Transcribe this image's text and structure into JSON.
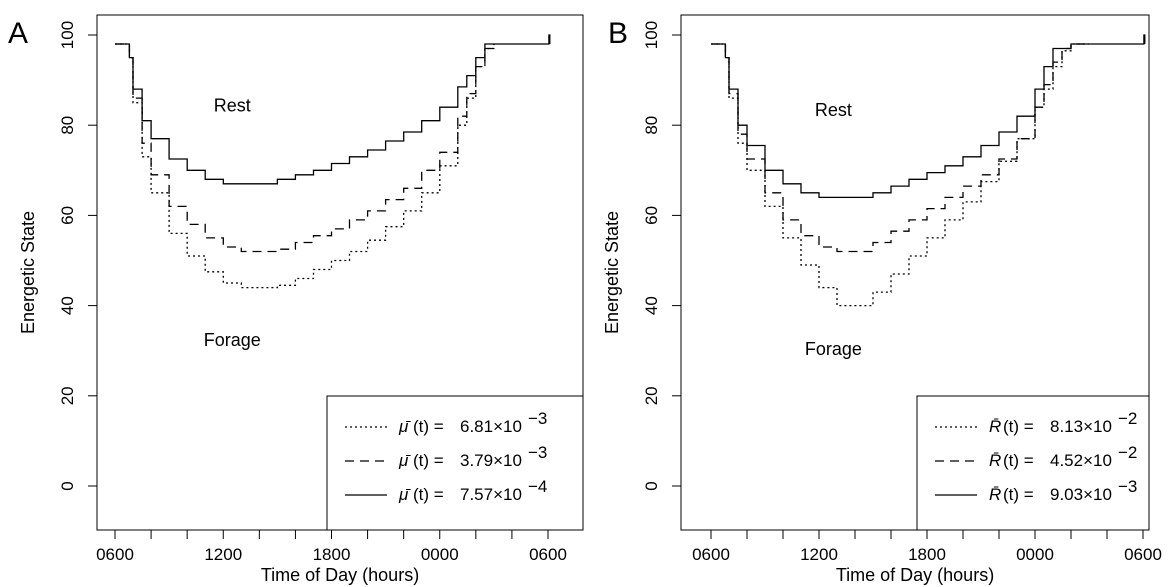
{
  "chart_data": [
    {
      "panel": "A",
      "type": "line",
      "xlabel": "Time of Day (hours)",
      "ylabel": "Energetic State",
      "xlim": [
        0,
        24
      ],
      "ylim": [
        0,
        100
      ],
      "x_ticks": [
        0,
        6,
        12,
        18,
        24
      ],
      "x_tick_labels": [
        "0600",
        "1200",
        "1800",
        "0000",
        "0600"
      ],
      "x_minor_ticks": [
        0,
        2,
        4,
        6,
        8,
        10,
        12,
        14,
        16,
        18,
        20,
        22,
        24
      ],
      "y_ticks": [
        0,
        20,
        40,
        60,
        80,
        100
      ],
      "y_tick_labels": [
        "0",
        "20",
        "40",
        "60",
        "80",
        "100"
      ],
      "grid": false,
      "legend_position": "bottom-right",
      "annotations": [
        {
          "text": "Rest",
          "x": 6.5,
          "y": 83
        },
        {
          "text": "Forage",
          "x": 6.5,
          "y": 31
        }
      ],
      "series": [
        {
          "legend_symbol": "μ̄",
          "legend_value": "6.81×10",
          "legend_exp": "−3",
          "style": "dotted",
          "x": [
            0,
            0.7,
            0.8,
            1,
            1.5,
            2,
            3,
            4,
            5,
            6,
            7,
            8,
            9,
            10,
            11,
            12,
            13,
            14,
            15,
            16,
            17,
            18,
            19,
            19.5,
            20,
            20.5,
            21
          ],
          "y": [
            98,
            98,
            95,
            85,
            73,
            65,
            56,
            51,
            47.5,
            45,
            44,
            44,
            44.5,
            46,
            48,
            50,
            52,
            54.5,
            57.5,
            61,
            65,
            71,
            80,
            86,
            93,
            97,
            98
          ]
        },
        {
          "legend_symbol": "μ̄",
          "legend_value": "3.79×10",
          "legend_exp": "−3",
          "style": "dashed",
          "x": [
            0,
            0.7,
            0.8,
            1,
            1.5,
            2,
            3,
            4,
            5,
            6,
            7,
            8,
            9,
            10,
            11,
            12,
            13,
            14,
            15,
            16,
            17,
            18,
            19,
            19.5,
            20,
            20.5,
            21
          ],
          "y": [
            98,
            98,
            95,
            86,
            76,
            69,
            62,
            58,
            55,
            53,
            52,
            52,
            52.5,
            54,
            55.5,
            57,
            59,
            61,
            63.5,
            66,
            70,
            74,
            82,
            87,
            93,
            97,
            98
          ]
        },
        {
          "legend_symbol": "μ̄",
          "legend_value": "7.57×10",
          "legend_exp": "−4",
          "style": "solid",
          "x": [
            0,
            0.7,
            0.8,
            1,
            1.5,
            2,
            3,
            4,
            5,
            6,
            7,
            8,
            9,
            10,
            11,
            12,
            13,
            14,
            15,
            16,
            17,
            18,
            19,
            19.5,
            20,
            20.5,
            21,
            22,
            23,
            24,
            24.05,
            24.1
          ],
          "y": [
            98,
            98,
            95,
            88,
            81,
            77,
            72.5,
            70,
            68,
            67,
            67,
            67,
            68,
            69,
            70,
            71.5,
            73,
            74.5,
            76.5,
            78.5,
            81,
            84,
            88.5,
            91,
            95,
            98,
            98,
            98,
            98,
            98,
            100,
            98
          ]
        }
      ]
    },
    {
      "panel": "B",
      "type": "line",
      "xlabel": "Time of Day (hours)",
      "ylabel": "Energetic State",
      "xlim": [
        0,
        24
      ],
      "ylim": [
        0,
        100
      ],
      "x_ticks": [
        0,
        6,
        12,
        18,
        24
      ],
      "x_tick_labels": [
        "0600",
        "1200",
        "1800",
        "0000",
        "0600"
      ],
      "x_minor_ticks": [
        0,
        2,
        4,
        6,
        8,
        10,
        12,
        14,
        16,
        18,
        20,
        22,
        24
      ],
      "y_ticks": [
        0,
        20,
        40,
        60,
        80,
        100
      ],
      "y_tick_labels": [
        "0",
        "20",
        "40",
        "60",
        "80",
        "100"
      ],
      "grid": false,
      "legend_position": "bottom-right",
      "annotations": [
        {
          "text": "Rest",
          "x": 6.8,
          "y": 82
        },
        {
          "text": "Forage",
          "x": 6.8,
          "y": 29
        }
      ],
      "series": [
        {
          "legend_symbol": "R̄",
          "legend_value": "8.13×10",
          "legend_exp": "−2",
          "style": "dotted",
          "x": [
            0,
            0.7,
            0.8,
            1,
            1.5,
            2,
            3,
            4,
            5,
            6,
            7,
            8,
            9,
            10,
            11,
            12,
            13,
            14,
            15,
            16,
            17,
            18,
            18.5,
            19,
            19.5,
            20,
            21
          ],
          "y": [
            98,
            98,
            95,
            86,
            76,
            70,
            62,
            55,
            49,
            44,
            40,
            40,
            43,
            47,
            51,
            55,
            59,
            63,
            67.5,
            72,
            77,
            84,
            88,
            93,
            96.5,
            98,
            98
          ]
        },
        {
          "legend_symbol": "R̄",
          "legend_value": "4.52×10",
          "legend_exp": "−2",
          "style": "dashed",
          "x": [
            0,
            0.7,
            0.8,
            1,
            1.5,
            2,
            3,
            4,
            5,
            6,
            7,
            8,
            9,
            10,
            11,
            12,
            13,
            14,
            15,
            16,
            17,
            18,
            18.5,
            19,
            19.5,
            20,
            21
          ],
          "y": [
            98,
            98,
            95,
            87,
            78,
            72.5,
            65,
            59,
            55.5,
            53,
            52,
            52,
            54,
            56.5,
            59,
            61.5,
            64,
            66.5,
            69,
            72.5,
            77,
            84,
            89,
            94,
            97,
            98,
            98
          ]
        },
        {
          "legend_symbol": "R̄",
          "legend_value": "9.03×10",
          "legend_exp": "−3",
          "style": "solid",
          "x": [
            0,
            0.7,
            0.8,
            1,
            1.5,
            2,
            3,
            4,
            5,
            6,
            7,
            8,
            9,
            10,
            11,
            12,
            13,
            14,
            15,
            16,
            17,
            18,
            18.5,
            19,
            20,
            21,
            22,
            23,
            24,
            24.05,
            24.1
          ],
          "y": [
            98,
            98,
            95,
            88,
            80,
            75.5,
            70,
            67,
            65,
            64,
            64,
            64,
            65,
            66.5,
            68,
            69.5,
            71,
            73,
            75.5,
            78.5,
            82,
            88,
            93,
            97,
            98,
            98,
            98,
            98,
            98,
            100,
            98
          ]
        }
      ]
    }
  ]
}
